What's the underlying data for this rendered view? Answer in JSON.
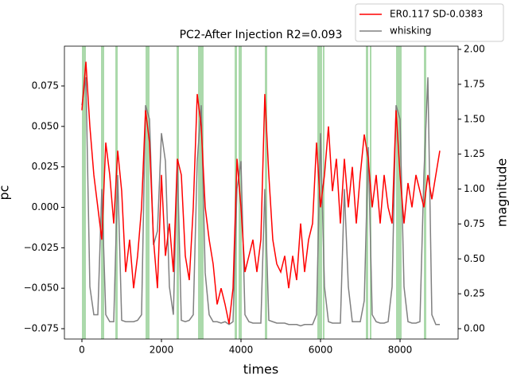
{
  "chart_data": {
    "type": "line",
    "title": "PC2-After Injection R2=0.093",
    "xlabel": "times",
    "ylabel": "pc",
    "y2label": "magnitude",
    "x": [
      0,
      100,
      200,
      300,
      400,
      500,
      600,
      700,
      800,
      900,
      1000,
      1100,
      1200,
      1300,
      1400,
      1500,
      1600,
      1700,
      1800,
      1900,
      2000,
      2100,
      2200,
      2300,
      2400,
      2500,
      2600,
      2700,
      2800,
      2900,
      3000,
      3100,
      3200,
      3300,
      3400,
      3500,
      3600,
      3700,
      3800,
      3900,
      4000,
      4100,
      4200,
      4300,
      4400,
      4500,
      4600,
      4700,
      4800,
      4900,
      5000,
      5100,
      5200,
      5300,
      5400,
      5500,
      5600,
      5700,
      5800,
      5900,
      6000,
      6100,
      6200,
      6300,
      6400,
      6500,
      6600,
      6700,
      6800,
      6900,
      7000,
      7100,
      7200,
      7300,
      7400,
      7500,
      7600,
      7700,
      7800,
      7900,
      8000,
      8100,
      8200,
      8300,
      8400,
      8500,
      8600,
      8700,
      8800,
      8900,
      9000
    ],
    "series": [
      {
        "name": "ER0.117 SD-0.0383",
        "color": "#ff0000",
        "axis": "y",
        "values": [
          0.06,
          0.09,
          0.05,
          0.02,
          0.0,
          -0.02,
          0.04,
          0.02,
          -0.01,
          0.035,
          0.01,
          -0.04,
          -0.02,
          -0.05,
          -0.03,
          0.0,
          0.06,
          0.04,
          -0.02,
          -0.05,
          0.02,
          -0.03,
          -0.01,
          -0.04,
          0.03,
          0.02,
          -0.03,
          -0.045,
          0.0,
          0.07,
          0.05,
          0.0,
          -0.02,
          -0.035,
          -0.06,
          -0.05,
          -0.06,
          -0.072,
          -0.05,
          0.03,
          0.0,
          -0.04,
          -0.03,
          -0.02,
          -0.04,
          -0.02,
          0.07,
          0.02,
          -0.02,
          -0.035,
          -0.04,
          -0.03,
          -0.05,
          -0.03,
          -0.045,
          -0.01,
          -0.04,
          -0.02,
          -0.01,
          0.04,
          0.0,
          0.02,
          0.05,
          0.01,
          0.03,
          -0.01,
          0.03,
          0.0,
          0.025,
          -0.01,
          0.02,
          0.045,
          0.03,
          0.0,
          0.02,
          -0.01,
          0.02,
          0.0,
          -0.01,
          0.06,
          0.02,
          -0.01,
          0.015,
          0.0,
          0.02,
          0.01,
          0.0,
          0.02,
          0.005,
          0.02,
          0.035
        ]
      },
      {
        "name": "whisking",
        "color": "#808080",
        "axis": "y2",
        "values": [
          1.6,
          1.8,
          0.3,
          0.1,
          0.1,
          1.0,
          0.1,
          0.05,
          0.05,
          1.1,
          0.06,
          0.05,
          0.05,
          0.05,
          0.06,
          0.1,
          1.6,
          1.5,
          0.6,
          0.7,
          1.4,
          1.2,
          0.3,
          0.1,
          1.2,
          0.06,
          0.05,
          0.06,
          0.1,
          1.2,
          1.6,
          0.4,
          0.1,
          0.05,
          0.05,
          0.04,
          0.05,
          0.03,
          0.05,
          1.0,
          1.2,
          0.1,
          0.05,
          0.04,
          0.04,
          0.04,
          1.0,
          0.06,
          0.05,
          0.04,
          0.04,
          0.04,
          0.03,
          0.03,
          0.03,
          0.02,
          0.03,
          0.03,
          0.03,
          0.1,
          1.4,
          0.3,
          0.05,
          0.04,
          0.04,
          0.04,
          1.0,
          0.3,
          0.05,
          0.05,
          0.05,
          0.2,
          1.3,
          0.1,
          0.05,
          0.04,
          0.04,
          0.05,
          0.3,
          1.6,
          1.5,
          0.3,
          0.05,
          0.04,
          0.04,
          0.05,
          1.1,
          1.8,
          0.1,
          0.03,
          0.03
        ]
      }
    ],
    "spans": [
      [
        0,
        100
      ],
      [
        480,
        560
      ],
      [
        840,
        900
      ],
      [
        1600,
        1700
      ],
      [
        2380,
        2440
      ],
      [
        2920,
        3060
      ],
      [
        3840,
        3900
      ],
      [
        3940,
        4020
      ],
      [
        4600,
        4660
      ],
      [
        5920,
        6040
      ],
      [
        6060,
        6100
      ],
      [
        7140,
        7200
      ],
      [
        7240,
        7280
      ],
      [
        7900,
        8040
      ],
      [
        8600,
        8660
      ]
    ],
    "span_color": "#2ca02c",
    "xlim": [
      -440,
      9460
    ],
    "xticks": [
      0,
      2000,
      4000,
      6000,
      8000
    ],
    "ylim": [
      -0.0814,
      0.0996
    ],
    "yticks": [
      {
        "value": -0.075,
        "label": "−0.075"
      },
      {
        "value": -0.05,
        "label": "−0.050"
      },
      {
        "value": -0.025,
        "label": "−0.025"
      },
      {
        "value": 0,
        "label": "0.000"
      },
      {
        "value": 0.025,
        "label": "0.025"
      },
      {
        "value": 0.05,
        "label": "0.050"
      },
      {
        "value": 0.075,
        "label": "0.075"
      }
    ],
    "y2lim": [
      -0.074,
      2.023
    ],
    "y2ticks": [
      {
        "value": 0,
        "label": "0.00"
      },
      {
        "value": 0.25,
        "label": "0.25"
      },
      {
        "value": 0.5,
        "label": "0.50"
      },
      {
        "value": 0.75,
        "label": "0.75"
      },
      {
        "value": 1,
        "label": "1.00"
      },
      {
        "value": 1.25,
        "label": "1.25"
      },
      {
        "value": 1.5,
        "label": "1.50"
      },
      {
        "value": 1.75,
        "label": "1.75"
      },
      {
        "value": 2,
        "label": "2.00"
      }
    ],
    "legend": "upper right"
  }
}
